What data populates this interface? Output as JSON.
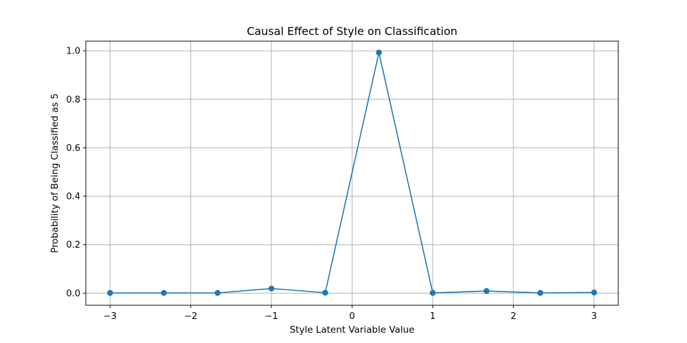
{
  "chart_data": {
    "type": "line",
    "title": "Causal Effect of Style on Classification",
    "xlabel": "Style Latent Variable Value",
    "ylabel": "Probability of Being Classified as 5",
    "xlim": [
      -3.3,
      3.3
    ],
    "ylim": [
      -0.05,
      1.04
    ],
    "x_ticks": [
      -3,
      -2,
      -1,
      0,
      1,
      2,
      3
    ],
    "x_tick_labels": [
      "−3",
      "−2",
      "−1",
      "0",
      "1",
      "2",
      "3"
    ],
    "y_ticks": [
      0.0,
      0.2,
      0.4,
      0.6,
      0.8,
      1.0
    ],
    "y_tick_labels": [
      "0.0",
      "0.2",
      "0.4",
      "0.6",
      "0.8",
      "1.0"
    ],
    "grid": true,
    "series": [
      {
        "color": "#1f77b4",
        "marker": "circle",
        "x": [
          -3.0,
          -2.333,
          -1.667,
          -1.0,
          -0.333,
          0.333,
          1.0,
          1.667,
          2.333,
          3.0
        ],
        "y": [
          0.001,
          0.001,
          0.001,
          0.019,
          0.002,
          0.993,
          0.001,
          0.009,
          0.001,
          0.003
        ]
      }
    ]
  }
}
